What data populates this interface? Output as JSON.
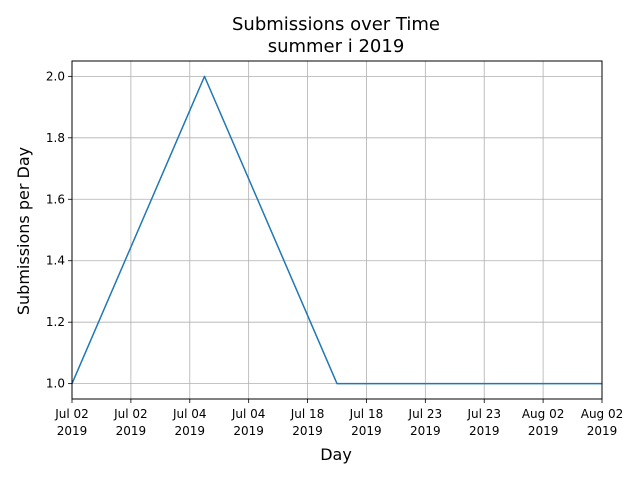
{
  "chart_data": {
    "type": "line",
    "title": "Submissions over Time",
    "subtitle": "summer i 2019",
    "xlabel": "Day",
    "ylabel": "Submissions per Day",
    "x_ticks": [
      {
        "line1": "Jul 02",
        "line2": "2019"
      },
      {
        "line1": "Jul 02",
        "line2": "2019"
      },
      {
        "line1": "Jul 04",
        "line2": "2019"
      },
      {
        "line1": "Jul 04",
        "line2": "2019"
      },
      {
        "line1": "Jul 18",
        "line2": "2019"
      },
      {
        "line1": "Jul 18",
        "line2": "2019"
      },
      {
        "line1": "Jul 23",
        "line2": "2019"
      },
      {
        "line1": "Jul 23",
        "line2": "2019"
      },
      {
        "line1": "Aug 02",
        "line2": "2019"
      },
      {
        "line1": "Aug 02",
        "line2": "2019"
      }
    ],
    "y_ticks": [
      "1.0",
      "1.2",
      "1.4",
      "1.6",
      "1.8",
      "2.0"
    ],
    "ylim": [
      0.95,
      2.05
    ],
    "y_tick_values": [
      1.0,
      1.2,
      1.4,
      1.6,
      1.8,
      2.0
    ],
    "grid": true,
    "series": [
      {
        "color": "#1f77b4",
        "points": [
          {
            "x_tick_pos": 0.0,
            "y": 1.0
          },
          {
            "x_tick_pos": 2.25,
            "y": 2.0
          },
          {
            "x_tick_pos": 4.5,
            "y": 1.0
          },
          {
            "x_tick_pos": 9.0,
            "y": 1.0
          }
        ]
      }
    ]
  }
}
